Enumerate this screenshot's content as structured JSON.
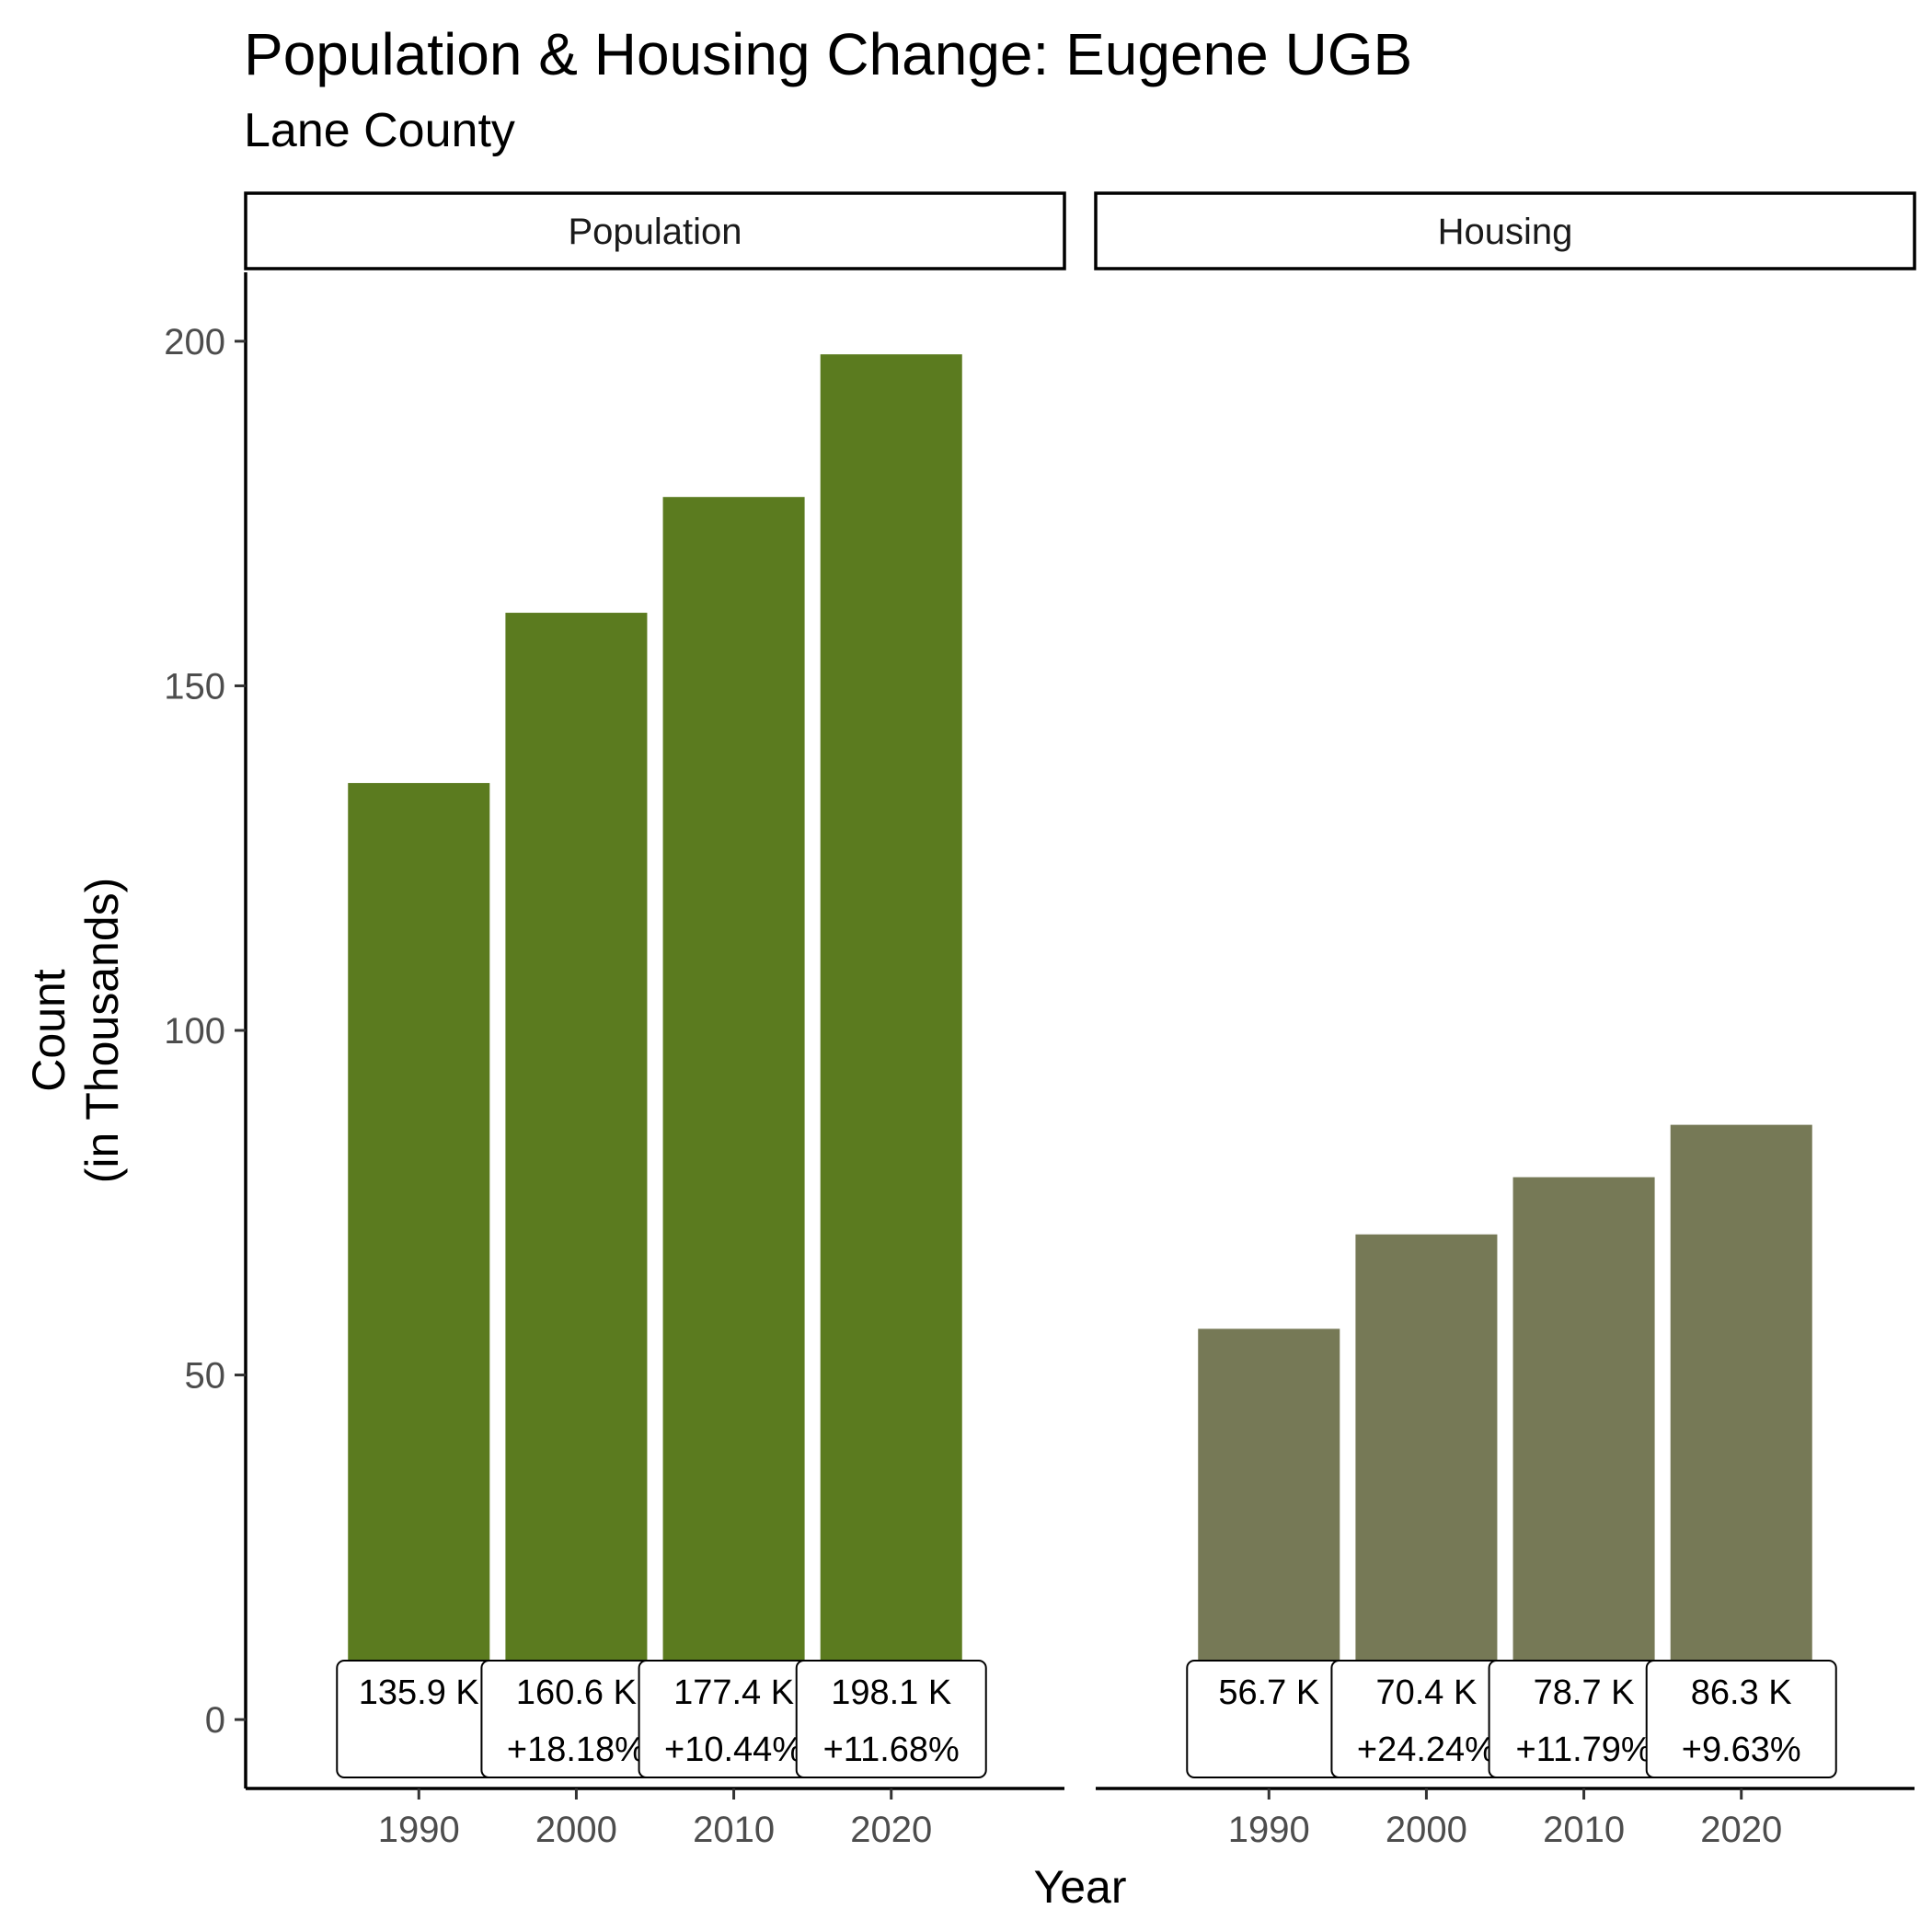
{
  "title": "Population & Housing Change: Eugene UGB",
  "subtitle": "Lane County",
  "chart_data": {
    "type": "bar",
    "title": "Population & Housing Change: Eugene UGB",
    "subtitle": "Lane County",
    "xlabel": "Year",
    "ylabel": "Count\n(in Thousands)",
    "ylabel_lines": [
      "Count",
      "(in Thousands)"
    ],
    "ylim": [
      -10,
      210
    ],
    "yticks": [
      0,
      50,
      100,
      150,
      200
    ],
    "categories": [
      "1990",
      "2000",
      "2010",
      "2020"
    ],
    "grid": false,
    "facets": [
      {
        "name": "Population",
        "color": "#5b7b1f",
        "values": [
          135.9,
          160.6,
          177.4,
          198.1
        ],
        "labels": [
          "135.9 K",
          "160.6 K",
          "177.4 K",
          "198.1 K"
        ],
        "changes": [
          "",
          "+18.18%",
          "+10.44%",
          "+11.68%"
        ]
      },
      {
        "name": "Housing",
        "color": "#767956",
        "values": [
          56.7,
          70.4,
          78.7,
          86.3
        ],
        "labels": [
          "56.7 K",
          "70.4 K",
          "78.7 K",
          "86.3 K"
        ],
        "changes": [
          "",
          "+24.24%",
          "+11.79%",
          "+9.63%"
        ]
      }
    ]
  }
}
